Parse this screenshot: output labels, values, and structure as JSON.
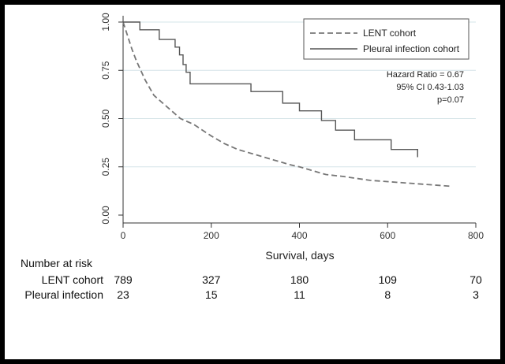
{
  "chart_data": {
    "type": "line",
    "title": "",
    "xlabel": "Survival, days",
    "ylabel": "",
    "xlim": [
      0,
      800
    ],
    "ylim": [
      0,
      1
    ],
    "xticks": [
      "0",
      "200",
      "400",
      "600",
      "800"
    ],
    "yticks": [
      "0.00",
      "0.25",
      "0.50",
      "0.75",
      "1.00"
    ],
    "grid": "horizontal",
    "legend_position": "top-right",
    "series": [
      {
        "name": "LENT cohort",
        "style": "dashed",
        "color": "#777777",
        "step": false,
        "x": [
          0,
          10,
          20,
          30,
          40,
          50,
          60,
          70,
          80,
          90,
          100,
          110,
          120,
          130,
          140,
          160,
          180,
          200,
          230,
          260,
          290,
          320,
          350,
          380,
          400,
          430,
          460,
          500,
          560,
          620,
          680,
          740
        ],
        "y": [
          1.0,
          0.93,
          0.86,
          0.8,
          0.75,
          0.7,
          0.66,
          0.62,
          0.6,
          0.58,
          0.56,
          0.54,
          0.52,
          0.5,
          0.49,
          0.47,
          0.44,
          0.41,
          0.37,
          0.34,
          0.32,
          0.3,
          0.28,
          0.26,
          0.25,
          0.23,
          0.21,
          0.2,
          0.18,
          0.17,
          0.16,
          0.15
        ]
      },
      {
        "name": "Pleural infection cohort",
        "style": "solid",
        "color": "#555555",
        "step": true,
        "x": [
          0,
          38,
          82,
          118,
          128,
          136,
          143,
          152,
          290,
          362,
          400,
          450,
          482,
          525,
          608,
          668
        ],
        "y": [
          1.0,
          0.96,
          0.91,
          0.87,
          0.83,
          0.78,
          0.74,
          0.68,
          0.64,
          0.58,
          0.54,
          0.49,
          0.44,
          0.39,
          0.34,
          0.3
        ]
      }
    ],
    "annotations": [
      "Hazard Ratio = 0.67",
      "95% CI 0.43-1.03",
      "p=0.07"
    ]
  },
  "risk_table": {
    "title": "Number at risk",
    "rows": [
      {
        "label": "LENT cohort",
        "values": [
          "789",
          "327",
          "180",
          "109",
          "70"
        ]
      },
      {
        "label": "Pleural infection",
        "values": [
          "23",
          "15",
          "11",
          "8",
          "3"
        ]
      }
    ]
  }
}
